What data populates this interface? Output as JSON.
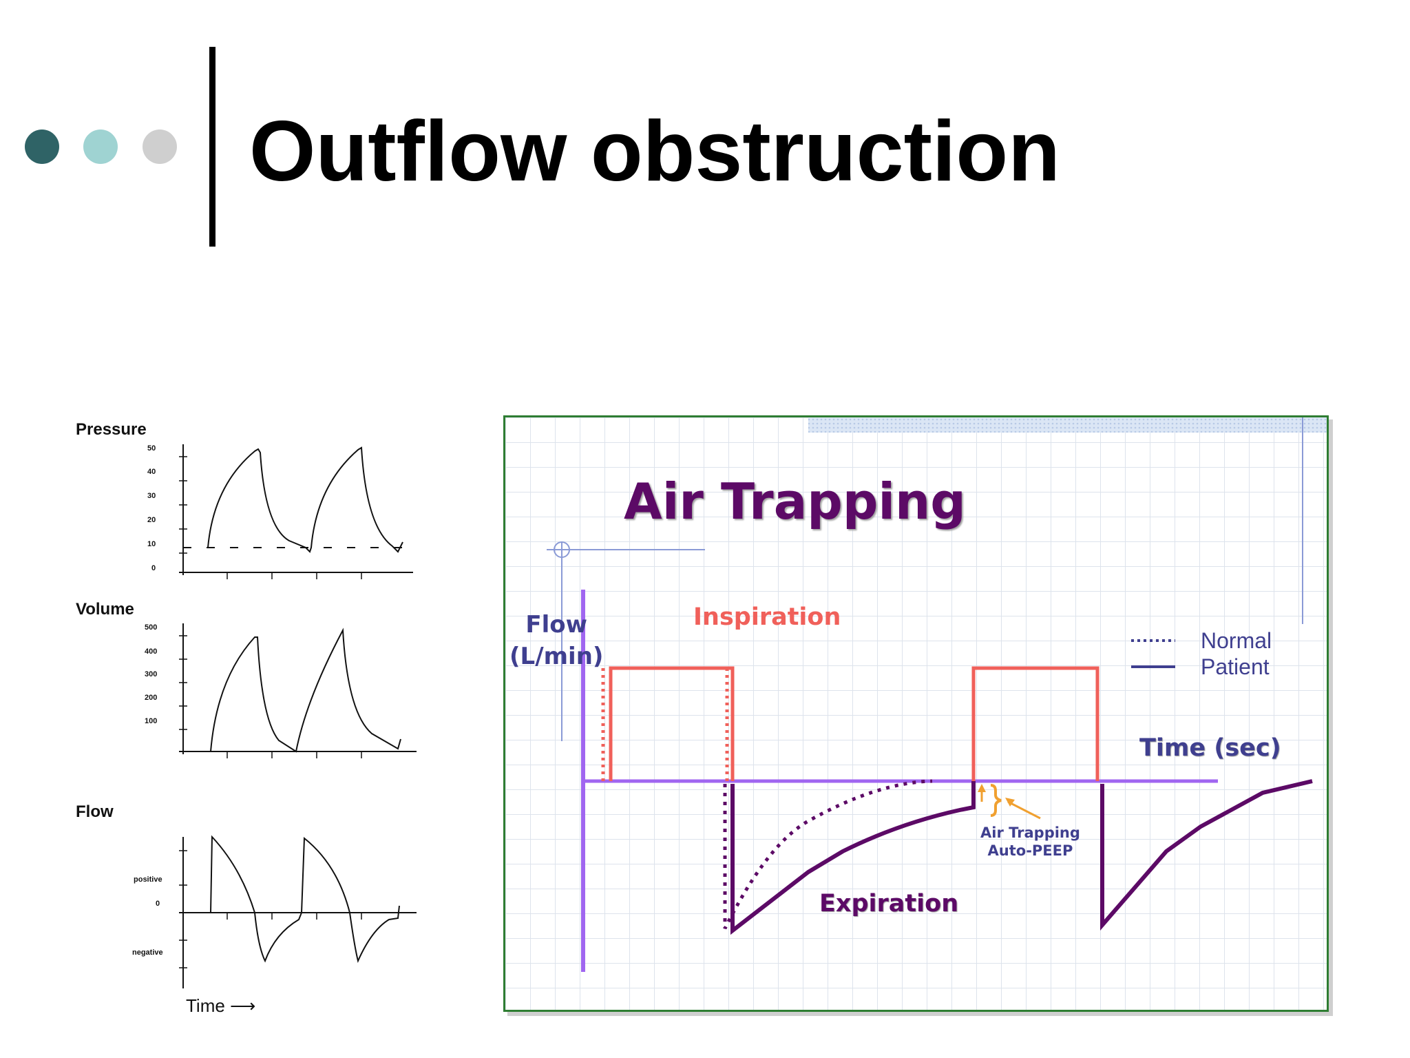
{
  "slide": {
    "title": "Outflow obstruction",
    "bullet_colors": [
      "#2f6366",
      "#9fd3d2",
      "#cfcfcf"
    ]
  },
  "left_diagram": {
    "panels": [
      {
        "label": "Pressure",
        "ticks": [
          "50",
          "40",
          "30",
          "20",
          "10",
          "0"
        ]
      },
      {
        "label": "Volume",
        "ticks": [
          "500",
          "400",
          "300",
          "200",
          "100"
        ]
      },
      {
        "label": "Flow",
        "ticks": [
          "positive",
          "0",
          "negative"
        ]
      }
    ],
    "x_label": "Time",
    "x_arrow": "⟶"
  },
  "air_trapping": {
    "title": "Air Trapping",
    "y_label_line1": "Flow",
    "y_label_line2": "(L/min)",
    "x_label": "Time (sec)",
    "inspiration_label": "Inspiration",
    "expiration_label": "Expiration",
    "legend": [
      {
        "style": "dotted",
        "label": "Normal"
      },
      {
        "style": "solid",
        "label": "Patient"
      }
    ],
    "annotation_line1": "Air Trapping",
    "annotation_line2": "Auto-PEEP",
    "colors": {
      "title": "#5c0a66",
      "inspiration": "#f0605a",
      "expiration": "#5c0a66",
      "axis": "#a066f0",
      "labels": "#3f3f8f",
      "frame": "#2e7d32",
      "annotation": "#f0a030"
    }
  }
}
